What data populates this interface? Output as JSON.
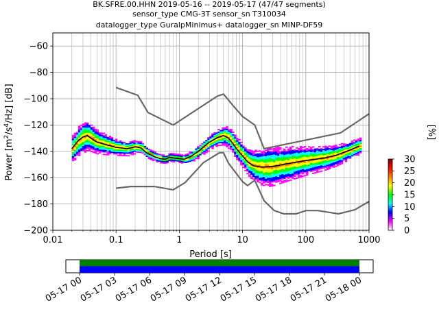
{
  "chart_data": [
    {
      "type": "heatmap",
      "title_lines": [
        "BK.SFRE.00.HHN   2019-05-16 -- 2019-05-17  (47/47 segments)",
        "sensor_type CMG-3T sensor_sn T310034",
        "datalogger_type GuralpMinimus+ datalogger_sn MINP-DF59"
      ],
      "xlabel": "Period [s]",
      "ylabel_parts": [
        "Power [m",
        "2",
        "/s",
        "4",
        "/Hz] [dB]"
      ],
      "xscale": "log",
      "xlim": [
        0.01,
        1000
      ],
      "ylim": [
        -200,
        -50
      ],
      "x_ticks": [
        {
          "v": 0.01,
          "label": "0.01"
        },
        {
          "v": 0.1,
          "label": "0.1"
        },
        {
          "v": 1,
          "label": "1"
        },
        {
          "v": 10,
          "label": "10"
        },
        {
          "v": 100,
          "label": "100"
        },
        {
          "v": 1000,
          "label": "1000"
        }
      ],
      "y_ticks": [
        {
          "v": -60,
          "label": "−60"
        },
        {
          "v": -80,
          "label": "−80"
        },
        {
          "v": -100,
          "label": "−100"
        },
        {
          "v": -120,
          "label": "−120"
        },
        {
          "v": -140,
          "label": "−140"
        },
        {
          "v": -160,
          "label": "−160"
        },
        {
          "v": -180,
          "label": "−180"
        },
        {
          "v": -200,
          "label": "−200"
        }
      ],
      "grid": true,
      "noise_models": {
        "high": [
          [
            0.1,
            -91.5
          ],
          [
            0.22,
            -97.4
          ],
          [
            0.32,
            -110.5
          ],
          [
            0.8,
            -120
          ],
          [
            4.0,
            -98
          ],
          [
            5.0,
            -96.5
          ],
          [
            6.0,
            -101
          ],
          [
            7.0,
            -105
          ],
          [
            10,
            -113.5
          ],
          [
            15.6,
            -120
          ],
          [
            21.9,
            -138
          ],
          [
            354,
            -126
          ],
          [
            1000,
            -111.5
          ]
        ],
        "low": [
          [
            0.1,
            -168
          ],
          [
            0.17,
            -166.7
          ],
          [
            0.4,
            -166.7
          ],
          [
            0.8,
            -169.2
          ],
          [
            1.24,
            -163.7
          ],
          [
            2.4,
            -148.6
          ],
          [
            4.3,
            -141.1
          ],
          [
            5.0,
            -141.1
          ],
          [
            6.0,
            -149
          ],
          [
            10,
            -163
          ],
          [
            12,
            -166
          ],
          [
            15.6,
            -162
          ],
          [
            21.9,
            -177.5
          ],
          [
            31.6,
            -185
          ],
          [
            45,
            -187.5
          ],
          [
            70,
            -187.5
          ],
          [
            101,
            -185
          ],
          [
            154,
            -185
          ],
          [
            328,
            -187.5
          ],
          [
            600,
            -184.4
          ],
          [
            1000,
            -178
          ]
        ]
      },
      "mode_curve": [
        [
          0.02,
          -138
        ],
        [
          0.025,
          -132
        ],
        [
          0.03,
          -129
        ],
        [
          0.035,
          -128
        ],
        [
          0.04,
          -130
        ],
        [
          0.05,
          -133
        ],
        [
          0.07,
          -135
        ],
        [
          0.1,
          -137
        ],
        [
          0.15,
          -138
        ],
        [
          0.2,
          -136.5
        ],
        [
          0.25,
          -137.5
        ],
        [
          0.3,
          -141
        ],
        [
          0.4,
          -144
        ],
        [
          0.5,
          -145.5
        ],
        [
          0.6,
          -146
        ],
        [
          0.7,
          -144.5
        ],
        [
          0.8,
          -145
        ],
        [
          1.0,
          -145.5
        ],
        [
          1.2,
          -146
        ],
        [
          1.5,
          -144
        ],
        [
          2.0,
          -140
        ],
        [
          2.5,
          -136
        ],
        [
          3.0,
          -133
        ],
        [
          4.0,
          -129.5
        ],
        [
          5.0,
          -128
        ],
        [
          6.0,
          -130
        ],
        [
          7.0,
          -134
        ],
        [
          8.0,
          -138
        ],
        [
          10,
          -143.5
        ],
        [
          12,
          -148
        ],
        [
          15,
          -151
        ],
        [
          20,
          -152
        ],
        [
          30,
          -151.5
        ],
        [
          50,
          -149.5
        ],
        [
          100,
          -147
        ],
        [
          200,
          -145
        ],
        [
          300,
          -143
        ],
        [
          500,
          -139
        ],
        [
          700,
          -136
        ]
      ],
      "spread_curve": [
        [
          0.02,
          10
        ],
        [
          0.03,
          12
        ],
        [
          0.05,
          9
        ],
        [
          0.1,
          6
        ],
        [
          0.2,
          5
        ],
        [
          0.3,
          4
        ],
        [
          0.6,
          3
        ],
        [
          1.0,
          3
        ],
        [
          2.0,
          5
        ],
        [
          4.0,
          6
        ],
        [
          6.0,
          8
        ],
        [
          10,
          9
        ],
        [
          15,
          12
        ],
        [
          25,
          15
        ],
        [
          50,
          13
        ],
        [
          100,
          11
        ],
        [
          300,
          8
        ],
        [
          700,
          6
        ]
      ],
      "colorbar": {
        "label": "[%]",
        "range": [
          0,
          30
        ],
        "ticks": [
          "0",
          "5",
          "10",
          "15",
          "20",
          "25",
          "30"
        ],
        "colors": [
          "#ffffff",
          "#ff00ff",
          "#0000ff",
          "#00ffff",
          "#00ff00",
          "#ffff00",
          "#ff8000",
          "#ff0000",
          "#800000"
        ]
      },
      "colors": {
        "noise_model": "#666666",
        "mode_line": "#000000",
        "grid": "#b0b0b0"
      }
    },
    {
      "type": "timeline",
      "x_ticks": [
        "05-17 00",
        "05-17 03",
        "05-17 06",
        "05-17 09",
        "05-17 12",
        "05-17 15",
        "05-17 18",
        "05-17 21",
        "05-18 00"
      ],
      "bands": [
        {
          "color": "#008000",
          "start": "05-17 00",
          "end": "05-18 00"
        },
        {
          "color": "#0000ff",
          "start": "05-17 00",
          "end": "05-18 00"
        }
      ]
    }
  ]
}
